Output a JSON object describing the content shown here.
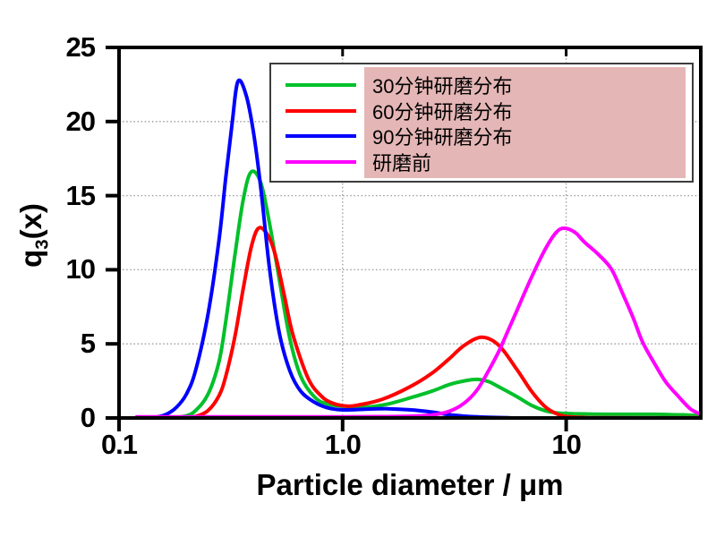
{
  "chart_data": {
    "type": "line",
    "title": "",
    "xlabel": "Particle diameter / μm",
    "ylabel": {
      "base": "q",
      "sub": "3",
      "rest": "(x)"
    },
    "x_scale": "log",
    "x_range": [
      0.1,
      40
    ],
    "y_range": [
      0,
      25
    ],
    "x_ticks": [
      {
        "value": 0.1,
        "label": "0.1"
      },
      {
        "value": 1.0,
        "label": "1.0"
      },
      {
        "value": 10,
        "label": "10"
      }
    ],
    "y_ticks": [
      {
        "value": 0,
        "label": "0"
      },
      {
        "value": 5,
        "label": "5"
      },
      {
        "value": 10,
        "label": "10"
      },
      {
        "value": 15,
        "label": "15"
      },
      {
        "value": 20,
        "label": "20"
      },
      {
        "value": 25,
        "label": "25"
      }
    ],
    "grid": {
      "horizontal": [
        5,
        10,
        15,
        20
      ],
      "vertical": [
        1.0,
        10
      ]
    },
    "legend_position": "top-right",
    "series": [
      {
        "name": "30分钟研磨分布",
        "color": "#00c02a",
        "peaks": [
          {
            "x": 0.39,
            "q3": 16.6
          },
          {
            "x": 4.0,
            "q3": 2.6
          }
        ],
        "points": [
          [
            0.17,
            0
          ],
          [
            0.2,
            0.15
          ],
          [
            0.22,
            0.5
          ],
          [
            0.25,
            1.6
          ],
          [
            0.28,
            3.8
          ],
          [
            0.3,
            6.5
          ],
          [
            0.33,
            11.0
          ],
          [
            0.36,
            14.8
          ],
          [
            0.39,
            16.6
          ],
          [
            0.43,
            15.9
          ],
          [
            0.47,
            13.2
          ],
          [
            0.52,
            9.4
          ],
          [
            0.58,
            5.4
          ],
          [
            0.65,
            2.8
          ],
          [
            0.75,
            1.4
          ],
          [
            0.85,
            0.95
          ],
          [
            1.0,
            0.8
          ],
          [
            1.3,
            0.75
          ],
          [
            1.6,
            0.95
          ],
          [
            2.0,
            1.35
          ],
          [
            2.5,
            1.8
          ],
          [
            3.0,
            2.25
          ],
          [
            3.5,
            2.5
          ],
          [
            4.0,
            2.6
          ],
          [
            4.5,
            2.45
          ],
          [
            5.0,
            2.1
          ],
          [
            6.0,
            1.45
          ],
          [
            7.0,
            0.85
          ],
          [
            8.0,
            0.5
          ],
          [
            9.0,
            0.35
          ],
          [
            10,
            0.3
          ],
          [
            12,
            0.27
          ],
          [
            15,
            0.25
          ],
          [
            20,
            0.25
          ],
          [
            25,
            0.25
          ],
          [
            30,
            0.22
          ],
          [
            35,
            0.2
          ],
          [
            40,
            0.15
          ]
        ]
      },
      {
        "name": "60分钟研磨分布",
        "color": "#ff0000",
        "peaks": [
          {
            "x": 0.42,
            "q3": 12.8
          },
          {
            "x": 4.2,
            "q3": 5.45
          }
        ],
        "points": [
          [
            0.19,
            0
          ],
          [
            0.22,
            0.1
          ],
          [
            0.25,
            0.5
          ],
          [
            0.28,
            1.5
          ],
          [
            0.3,
            2.8
          ],
          [
            0.33,
            5.5
          ],
          [
            0.36,
            8.8
          ],
          [
            0.39,
            11.5
          ],
          [
            0.42,
            12.8
          ],
          [
            0.46,
            12.4
          ],
          [
            0.5,
            11.0
          ],
          [
            0.55,
            8.2
          ],
          [
            0.6,
            5.6
          ],
          [
            0.7,
            2.7
          ],
          [
            0.8,
            1.5
          ],
          [
            0.9,
            1.0
          ],
          [
            1.05,
            0.8
          ],
          [
            1.2,
            0.9
          ],
          [
            1.5,
            1.25
          ],
          [
            2.0,
            2.1
          ],
          [
            2.5,
            3.0
          ],
          [
            3.0,
            4.0
          ],
          [
            3.5,
            4.9
          ],
          [
            4.2,
            5.45
          ],
          [
            5.0,
            4.9
          ],
          [
            6.0,
            3.3
          ],
          [
            7.0,
            1.8
          ],
          [
            8.0,
            0.8
          ],
          [
            9.0,
            0.3
          ],
          [
            10,
            0.1
          ],
          [
            12,
            0.03
          ],
          [
            15,
            0.01
          ],
          [
            40,
            0.01
          ]
        ]
      },
      {
        "name": "90分钟研磨分布",
        "color": "#0000ff",
        "peaks": [
          {
            "x": 0.34,
            "q3": 22.7
          }
        ],
        "points": [
          [
            0.14,
            0
          ],
          [
            0.16,
            0.2
          ],
          [
            0.18,
            0.7
          ],
          [
            0.2,
            1.6
          ],
          [
            0.22,
            3.2
          ],
          [
            0.25,
            7.0
          ],
          [
            0.28,
            12.0
          ],
          [
            0.3,
            16.2
          ],
          [
            0.32,
            19.8
          ],
          [
            0.34,
            22.7
          ],
          [
            0.37,
            21.8
          ],
          [
            0.4,
            19.2
          ],
          [
            0.43,
            15.6
          ],
          [
            0.47,
            10.2
          ],
          [
            0.52,
            5.8
          ],
          [
            0.58,
            3.2
          ],
          [
            0.65,
            1.8
          ],
          [
            0.75,
            1.05
          ],
          [
            0.85,
            0.7
          ],
          [
            1.0,
            0.55
          ],
          [
            1.3,
            0.6
          ],
          [
            1.6,
            0.62
          ],
          [
            2.0,
            0.55
          ],
          [
            2.5,
            0.4
          ],
          [
            3.0,
            0.22
          ],
          [
            3.5,
            0.12
          ],
          [
            4.5,
            0.04
          ],
          [
            5.5,
            0.01
          ],
          [
            7,
            0
          ],
          [
            40,
            0
          ]
        ]
      },
      {
        "name": "研磨前",
        "color": "#ff00ff",
        "peaks": [
          {
            "x": 9.8,
            "q3": 12.8
          }
        ],
        "points": [
          [
            0.12,
            0.08
          ],
          [
            0.5,
            0.08
          ],
          [
            1.0,
            0.08
          ],
          [
            1.5,
            0.09
          ],
          [
            2.0,
            0.12
          ],
          [
            2.5,
            0.2
          ],
          [
            3.0,
            0.45
          ],
          [
            3.5,
            1.0
          ],
          [
            4.0,
            1.9
          ],
          [
            4.5,
            3.2
          ],
          [
            5.0,
            4.5
          ],
          [
            5.5,
            5.9
          ],
          [
            6.0,
            7.2
          ],
          [
            7.0,
            9.5
          ],
          [
            8.0,
            11.3
          ],
          [
            9.0,
            12.5
          ],
          [
            9.8,
            12.8
          ],
          [
            11,
            12.5
          ],
          [
            12,
            11.9
          ],
          [
            14,
            11.0
          ],
          [
            16,
            10.0
          ],
          [
            18,
            8.3
          ],
          [
            20,
            6.7
          ],
          [
            22,
            5.1
          ],
          [
            25,
            3.6
          ],
          [
            28,
            2.4
          ],
          [
            32,
            1.4
          ],
          [
            36,
            0.6
          ],
          [
            40,
            0.25
          ]
        ]
      }
    ]
  },
  "legend": {
    "highlight_color": "#e5b6b6",
    "border_color": "#3c3c3c"
  },
  "colors": {
    "axis": "#000000",
    "gridline": "#999999",
    "background": "#ffffff"
  }
}
